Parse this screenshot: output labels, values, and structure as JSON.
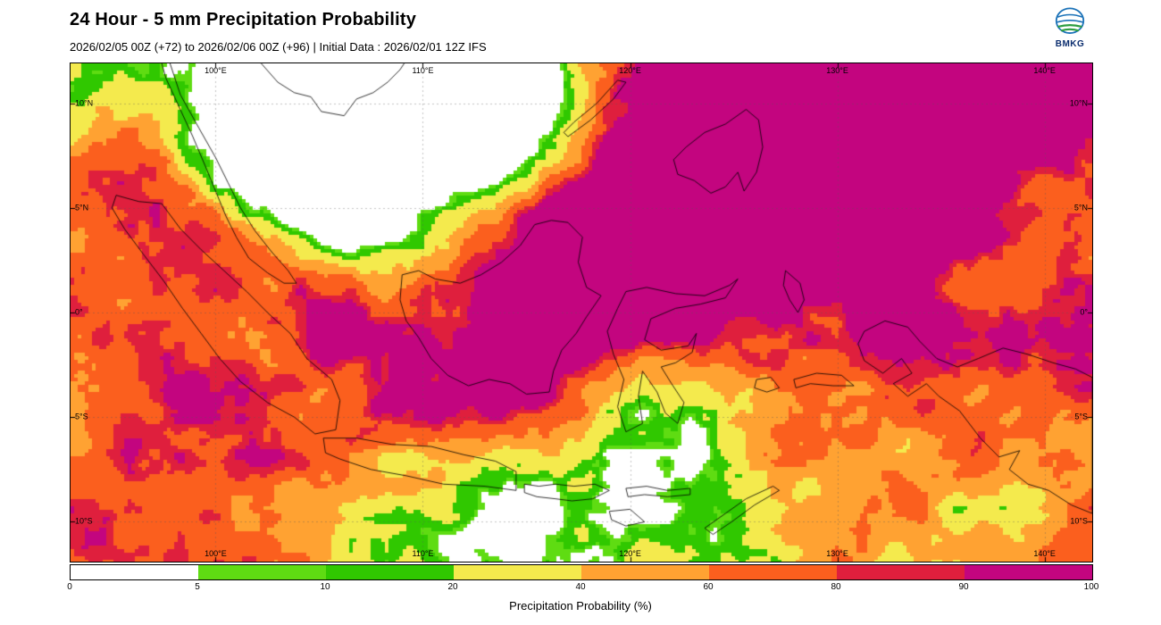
{
  "header": {
    "title": "24 Hour - 5 mm Precipitation Probability",
    "subtitle": "2026/02/05 00Z (+72) to 2026/02/06 00Z (+96) | Initial Data : 2026/02/01 12Z IFS"
  },
  "logo": {
    "label": "BMKG"
  },
  "map": {
    "bounds": {
      "lon_min": 93.0,
      "lon_max": 142.3,
      "lat_min": -11.9,
      "lat_max": 11.9
    },
    "lon_ticks": [
      {
        "label": "100°E",
        "value": 100
      },
      {
        "label": "110°E",
        "value": 110
      },
      {
        "label": "120°E",
        "value": 120
      },
      {
        "label": "130°E",
        "value": 130
      },
      {
        "label": "140°E",
        "value": 140
      }
    ],
    "lat_ticks": [
      {
        "label": "10°N",
        "value": 10
      },
      {
        "label": "5°N",
        "value": 5
      },
      {
        "label": "0°",
        "value": 0
      },
      {
        "label": "5°S",
        "value": -5
      },
      {
        "label": "10°S",
        "value": -10
      }
    ]
  },
  "colorbar": {
    "label": "Precipitation Probability (%)",
    "tick_labels": [
      "0",
      "5",
      "10",
      "20",
      "40",
      "60",
      "80",
      "90",
      "100"
    ],
    "thresholds": [
      5,
      10,
      20,
      40,
      60,
      80,
      90
    ],
    "colors": [
      "#ffffff",
      "#5fdc12",
      "#30c800",
      "#f4ea4d",
      "#ffa232",
      "#fb5f1e",
      "#df1f3d",
      "#c3057f"
    ]
  }
}
